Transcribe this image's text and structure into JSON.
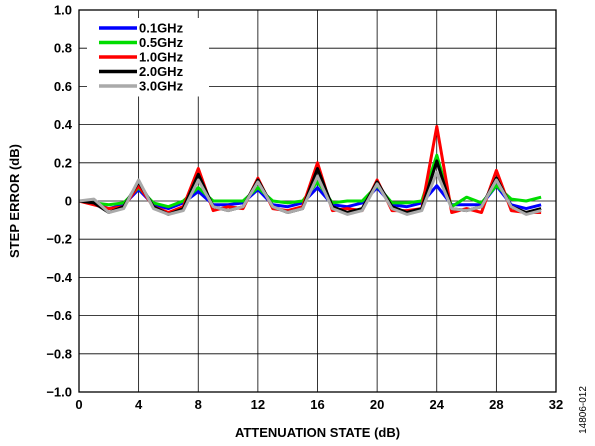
{
  "chart_data": {
    "type": "line",
    "xlabel": "ATTENUATION STATE (dB)",
    "ylabel": "STEP ERROR (dB)",
    "xlim": [
      0,
      32
    ],
    "ylim": [
      -1.0,
      1.0
    ],
    "x_ticks": [
      "0",
      "4",
      "8",
      "12",
      "16",
      "20",
      "24",
      "28",
      "32"
    ],
    "y_ticks": [
      "−1.0",
      "−0.8",
      "−0.6",
      "−0.4",
      "−0.2",
      "0",
      "0.2",
      "0.4",
      "0.6",
      "0.8",
      "1.0"
    ],
    "grid": true,
    "legend_position": "top-left",
    "x": [
      0,
      1,
      2,
      3,
      4,
      5,
      6,
      7,
      8,
      9,
      10,
      11,
      12,
      13,
      14,
      15,
      16,
      17,
      18,
      19,
      20,
      21,
      22,
      23,
      24,
      25,
      26,
      27,
      28,
      29,
      30,
      31
    ],
    "series": [
      {
        "name": "0.1GHz",
        "color": "#0000ff",
        "values": [
          0.0,
          -0.01,
          -0.04,
          -0.02,
          0.06,
          -0.02,
          -0.04,
          -0.01,
          0.05,
          -0.02,
          -0.02,
          -0.01,
          0.06,
          -0.02,
          -0.03,
          -0.01,
          0.07,
          -0.02,
          -0.03,
          -0.01,
          0.07,
          -0.02,
          -0.03,
          -0.01,
          0.08,
          -0.02,
          -0.02,
          -0.02,
          0.08,
          -0.02,
          -0.04,
          -0.02
        ]
      },
      {
        "name": "0.5GHz",
        "color": "#00dd00",
        "values": [
          0.0,
          -0.01,
          -0.02,
          -0.01,
          0.07,
          -0.01,
          -0.03,
          0.0,
          0.07,
          0.0,
          0.0,
          0.0,
          0.07,
          0.0,
          -0.01,
          0.0,
          0.1,
          -0.01,
          0.0,
          0.0,
          0.08,
          -0.01,
          -0.01,
          0.0,
          0.24,
          -0.03,
          0.02,
          -0.01,
          0.08,
          0.01,
          0.0,
          0.02
        ]
      },
      {
        "name": "1.0GHz",
        "color": "#ff0000",
        "values": [
          0.0,
          -0.02,
          -0.04,
          -0.03,
          0.08,
          -0.03,
          -0.06,
          -0.03,
          0.17,
          -0.05,
          -0.03,
          -0.04,
          0.12,
          -0.04,
          -0.05,
          -0.03,
          0.2,
          -0.05,
          -0.04,
          -0.05,
          0.11,
          -0.05,
          -0.05,
          -0.04,
          0.39,
          -0.06,
          -0.04,
          -0.06,
          0.16,
          -0.05,
          -0.06,
          -0.06
        ]
      },
      {
        "name": "2.0GHz",
        "color": "#000000",
        "values": [
          0.0,
          -0.01,
          -0.06,
          -0.03,
          0.1,
          -0.03,
          -0.07,
          -0.04,
          0.14,
          -0.03,
          -0.05,
          -0.03,
          0.11,
          -0.03,
          -0.06,
          -0.04,
          0.17,
          -0.03,
          -0.06,
          -0.04,
          0.1,
          -0.03,
          -0.06,
          -0.04,
          0.21,
          -0.04,
          -0.05,
          -0.03,
          0.12,
          -0.03,
          -0.06,
          -0.04
        ]
      },
      {
        "name": "3.0GHz",
        "color": "#aaaaaa",
        "values": [
          0.0,
          0.01,
          -0.06,
          -0.04,
          0.11,
          -0.04,
          -0.07,
          -0.05,
          0.11,
          -0.03,
          -0.05,
          -0.03,
          0.1,
          -0.03,
          -0.06,
          -0.04,
          0.13,
          -0.04,
          -0.07,
          -0.05,
          0.09,
          -0.04,
          -0.07,
          -0.05,
          0.15,
          -0.04,
          -0.05,
          -0.03,
          0.11,
          -0.03,
          -0.07,
          -0.05
        ]
      }
    ]
  },
  "figure_code": "14806-012"
}
